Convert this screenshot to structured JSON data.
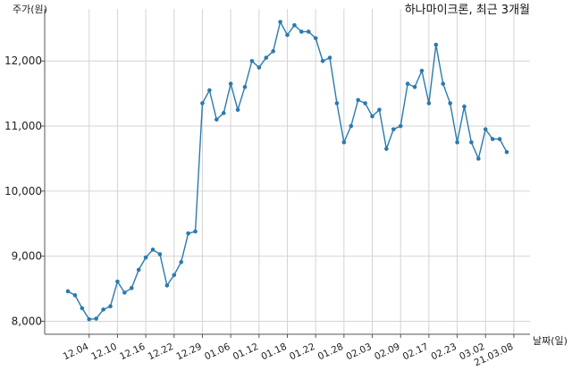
{
  "chart_data": {
    "type": "line",
    "title": "하나마이크론, 최근 3개월",
    "ylabel": "주가(원)",
    "xlabel": "날짜(일)",
    "ylim": [
      7800,
      12800
    ],
    "yticks": [
      8000,
      9000,
      10000,
      11000,
      12000
    ],
    "ytick_labels": [
      "8,000",
      "9,000",
      "10,000",
      "11,000",
      "12,000"
    ],
    "xtick_labels": [
      "12.04",
      "12.10",
      "12.16",
      "12.22",
      "12.29",
      "01.06",
      "01.12",
      "01.18",
      "01.22",
      "01.28",
      "02.03",
      "02.09",
      "02.17",
      "02.23",
      "03.02",
      "21.03.08"
    ],
    "xtick_index": [
      3,
      7,
      11,
      15,
      19,
      23,
      27,
      31,
      35,
      39,
      43,
      47,
      51,
      55,
      59,
      63
    ],
    "grid": true,
    "values": [
      8460,
      8400,
      8200,
      8030,
      8040,
      8180,
      8230,
      8610,
      8440,
      8510,
      8790,
      8980,
      9100,
      9030,
      8550,
      8710,
      8910,
      9350,
      9380,
      11350,
      11550,
      11100,
      11200,
      11650,
      11250,
      11600,
      12000,
      11900,
      12050,
      12150,
      12600,
      12400,
      12550,
      12450,
      12450,
      12350,
      12000,
      12050,
      11350,
      10750,
      11000,
      11400,
      11350,
      11150,
      11250,
      10650,
      10950,
      11000,
      11650,
      11600,
      11850,
      11350,
      12250,
      11650,
      11350,
      10750,
      11300,
      10750,
      10500,
      10950,
      10800,
      10800,
      10600
    ]
  }
}
